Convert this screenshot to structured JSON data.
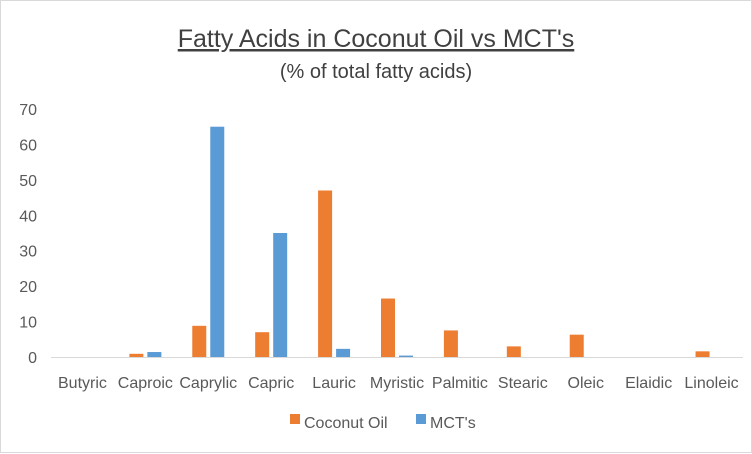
{
  "chart_data": {
    "type": "bar",
    "title": "Fatty Acids in Coconut Oil vs MCT's",
    "subtitle": "(% of total fatty acids)",
    "categories": [
      "Butyric",
      "Caproic",
      "Caprylic",
      "Capric",
      "Lauric",
      "Myristic",
      "Palmitic",
      "Stearic",
      "Oleic",
      "Elaidic",
      "Linoleic"
    ],
    "series": [
      {
        "name": "Coconut Oil",
        "color": "#ed7d31",
        "values": [
          0,
          0.9,
          8.8,
          7,
          47,
          16.5,
          7.5,
          3,
          6.3,
          0,
          1.6
        ]
      },
      {
        "name": "MCT's",
        "color": "#5b9bd5",
        "values": [
          0,
          1.4,
          65,
          35,
          2.3,
          0.4,
          0,
          0,
          0,
          0,
          0
        ]
      }
    ],
    "ylim": [
      0,
      70
    ],
    "yticks": [
      "0",
      "10",
      "20",
      "30",
      "40",
      "50",
      "60",
      "70"
    ],
    "xlabel": "",
    "ylabel": "",
    "grid": false,
    "legend_position": "bottom"
  }
}
